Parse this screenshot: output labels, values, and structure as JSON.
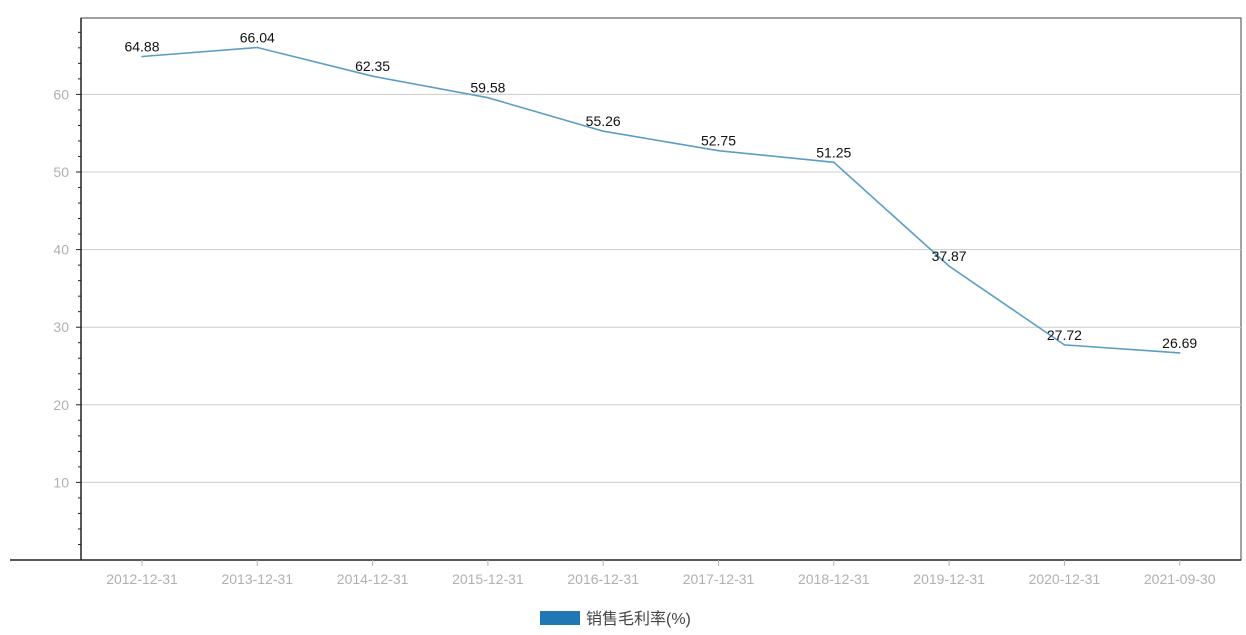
{
  "chart_data": {
    "type": "line",
    "categories": [
      "2012-12-31",
      "2013-12-31",
      "2014-12-31",
      "2015-12-31",
      "2016-12-31",
      "2017-12-31",
      "2018-12-31",
      "2019-12-31",
      "2020-12-31",
      "2021-09-30"
    ],
    "series": [
      {
        "name": "销售毛利率(%)",
        "values": [
          64.88,
          66.04,
          62.35,
          59.58,
          55.26,
          52.75,
          51.25,
          37.87,
          27.72,
          26.69
        ],
        "color": "#5b9ec4",
        "legend_color": "#1f77b4"
      }
    ],
    "yticks": [
      10,
      20,
      30,
      40,
      50,
      60
    ],
    "ylim": [
      0,
      70
    ],
    "grid": true,
    "legend": "bottom-center",
    "colors": {
      "axis": "#222222",
      "grid": "#cccccc",
      "tick_label": "#b0b0b0",
      "data_label": "#111111"
    }
  }
}
